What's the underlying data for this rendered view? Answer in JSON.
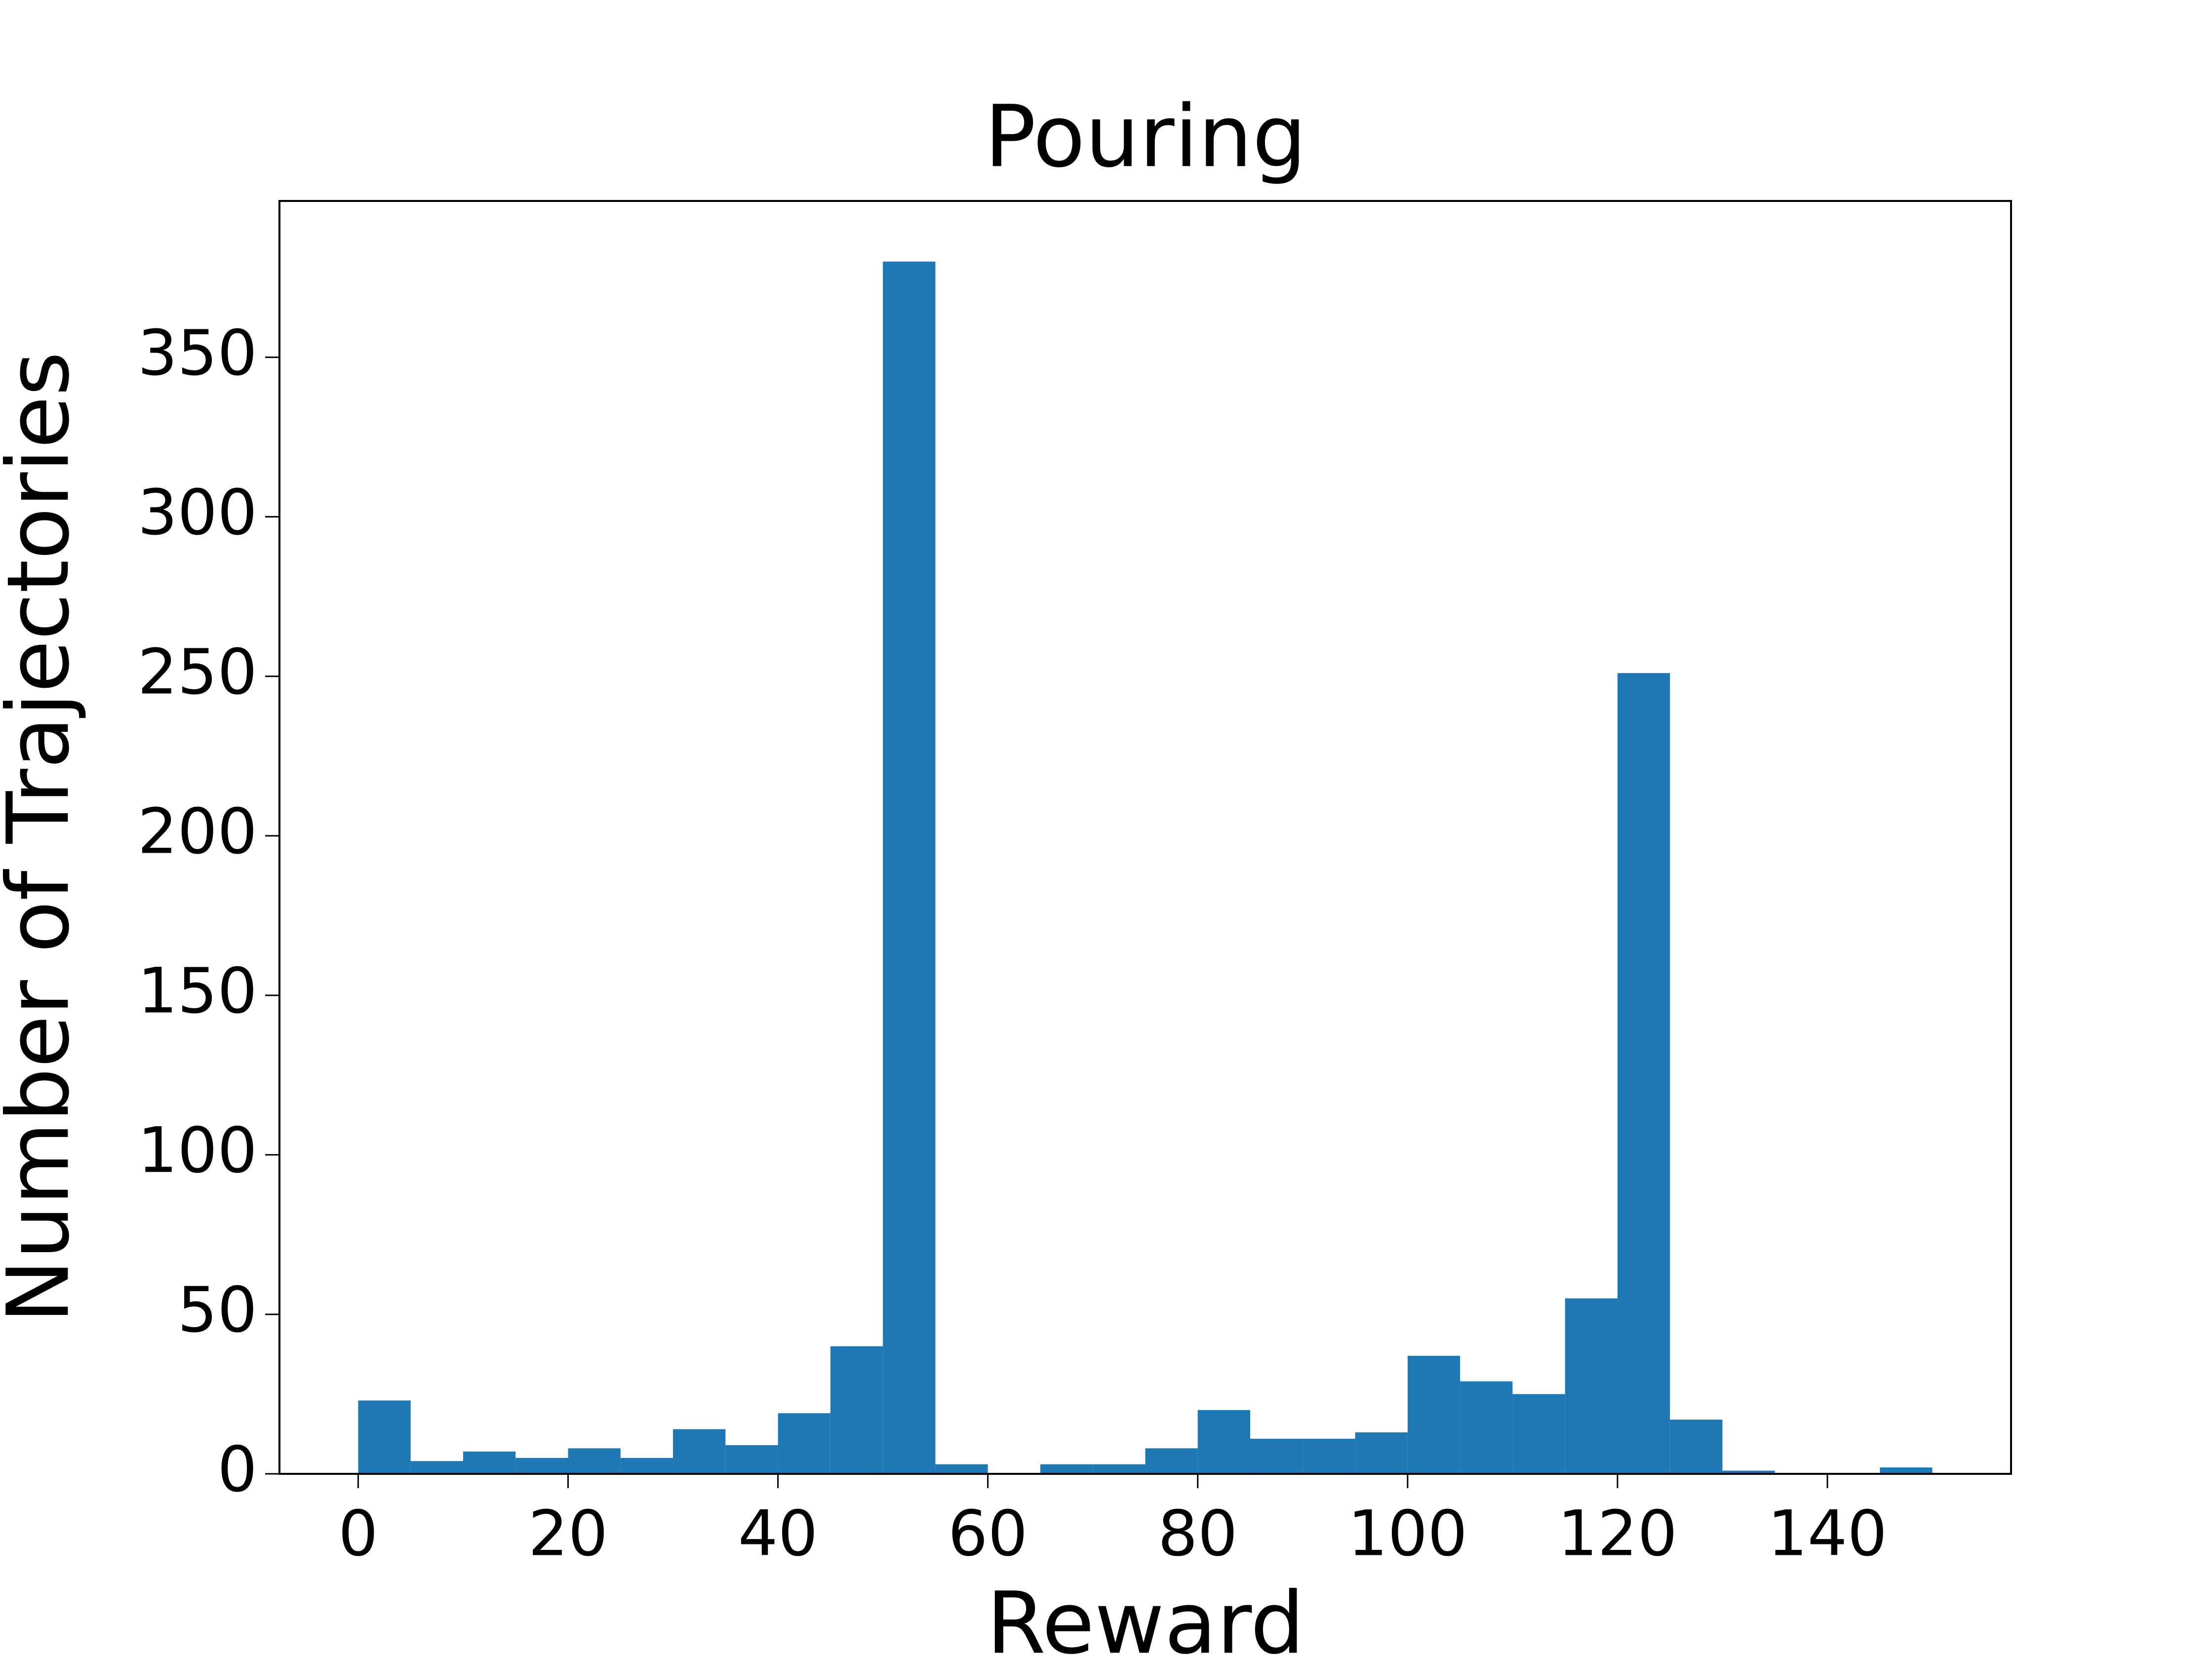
{
  "chart_data": {
    "type": "histogram",
    "title": "Pouring",
    "xlabel": "Reward",
    "ylabel": "Number of Trajectories",
    "bins": [
      0,
      5,
      10,
      15,
      20,
      25,
      30,
      35,
      40,
      45,
      50,
      55,
      60,
      65,
      70,
      75,
      80,
      85,
      90,
      95,
      100,
      105,
      110,
      115,
      120,
      125,
      130,
      135,
      140,
      145,
      150
    ],
    "values": [
      23,
      4,
      7,
      5,
      8,
      5,
      14,
      9,
      19,
      40,
      380,
      3,
      0,
      3,
      3,
      8,
      20,
      11,
      11,
      13,
      37,
      29,
      25,
      55,
      251,
      17,
      1,
      0,
      0,
      2
    ],
    "color": "#1f77b4",
    "xlim": [
      -7.5,
      157.5
    ],
    "xticks": [
      0,
      20,
      40,
      60,
      80,
      100,
      120,
      140
    ],
    "ylim": [
      0,
      399
    ],
    "yticks": [
      0,
      50,
      100,
      150,
      200,
      250,
      300,
      350
    ],
    "grid": false
  }
}
